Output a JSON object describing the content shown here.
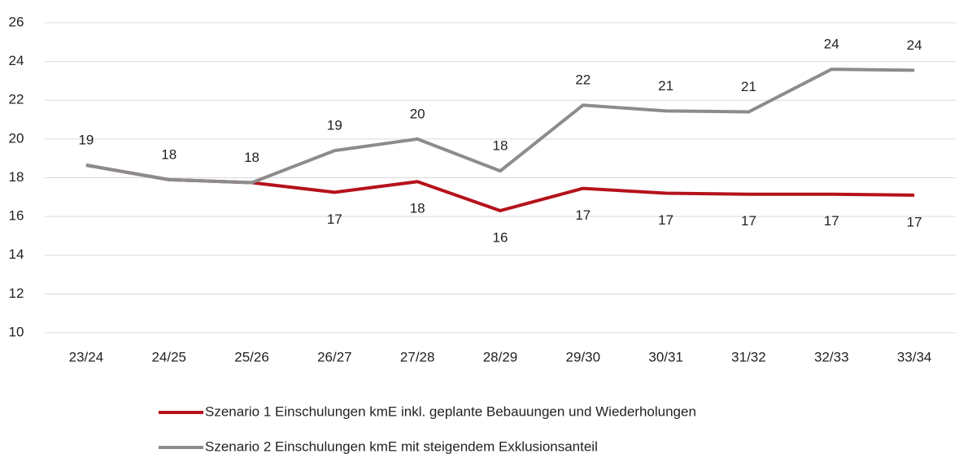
{
  "chart_data": {
    "type": "line",
    "categories": [
      "23/24",
      "24/25",
      "25/26",
      "26/27",
      "27/28",
      "28/29",
      "29/30",
      "30/31",
      "31/32",
      "32/33",
      "33/34"
    ],
    "series": [
      {
        "name": "Szenario 1 Einschulungen kmE inkl. geplante Bebauungen und Wiederholungen",
        "color": "#b5121b",
        "values": [
          18.65,
          17.9,
          17.75,
          17.25,
          17.8,
          16.3,
          17.45,
          17.2,
          17.15,
          17.15,
          17.1
        ],
        "value_labels": [
          null,
          null,
          null,
          "17",
          "18",
          "16",
          "17",
          "17",
          "17",
          "17",
          "17"
        ]
      },
      {
        "name": "Szenario 2  Einschulungen kmE mit steigendem Exklusionsanteil",
        "color": "#8c8c8c",
        "values": [
          18.65,
          17.9,
          17.75,
          19.4,
          20.0,
          18.35,
          21.75,
          21.45,
          21.4,
          23.6,
          23.55
        ],
        "value_labels": [
          "19",
          "18",
          "18",
          "19",
          "20",
          "18",
          "22",
          "21",
          "21",
          "24",
          "24"
        ]
      }
    ],
    "ylim": [
      10,
      26
    ],
    "yticks": [
      10,
      12,
      14,
      16,
      18,
      20,
      22,
      24,
      26
    ],
    "grid": true,
    "legend": "bottom"
  }
}
